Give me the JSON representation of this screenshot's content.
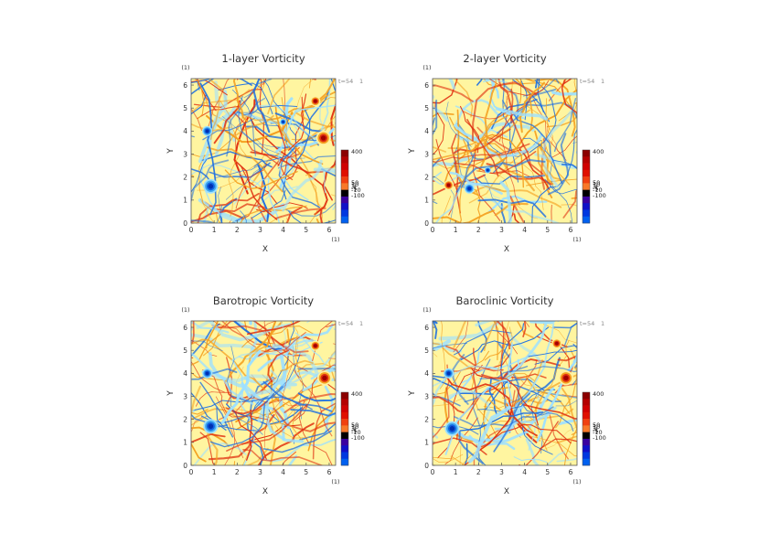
{
  "chart_data": [
    {
      "type": "heatmap",
      "title": "1-layer Vorticity",
      "xlabel": "X",
      "ylabel": "Y",
      "unit_x": "(1)",
      "unit_y": "(1)",
      "xlim": [
        0,
        6.28
      ],
      "ylim": [
        0,
        6.28
      ],
      "x_ticks": [
        "0",
        "1",
        "2",
        "3",
        "4",
        "5",
        "6"
      ],
      "y_ticks": [
        "0",
        "1",
        "2",
        "3",
        "4",
        "5",
        "6"
      ],
      "time_label": "t=54",
      "time_unit": "1",
      "colorbar": {
        "labels": [
          "400",
          "50",
          "10",
          "1",
          "-1",
          "-5",
          "-10",
          "-100"
        ],
        "colors": [
          "#8b0000",
          "#b40000",
          "#d00000",
          "#e01000",
          "#f04010",
          "#f87828",
          "#000000",
          "#3a00a0",
          "#1010c8",
          "#0038e0",
          "#0060f0"
        ]
      },
      "dominant_colors": [
        "#fff5a0",
        "#9ee0ff",
        "#f4a020",
        "#2070e0",
        "#e03010"
      ],
      "vortices": [
        {
          "x": 0.85,
          "y": 1.6,
          "sign": "negative",
          "strength": "strong"
        },
        {
          "x": 0.7,
          "y": 4.0,
          "sign": "negative",
          "strength": "medium"
        },
        {
          "x": 5.75,
          "y": 3.7,
          "sign": "positive",
          "strength": "strong"
        },
        {
          "x": 5.4,
          "y": 5.3,
          "sign": "positive",
          "strength": "medium"
        },
        {
          "x": 4.0,
          "y": 4.4,
          "sign": "negative",
          "strength": "weak"
        }
      ]
    },
    {
      "type": "heatmap",
      "title": "2-layer Vorticity",
      "xlabel": "X",
      "ylabel": "Y",
      "unit_x": "(1)",
      "unit_y": "(1)",
      "xlim": [
        0,
        6.28
      ],
      "ylim": [
        0,
        6.28
      ],
      "x_ticks": [
        "0",
        "1",
        "2",
        "3",
        "4",
        "5",
        "6"
      ],
      "y_ticks": [
        "0",
        "1",
        "2",
        "3",
        "4",
        "5",
        "6"
      ],
      "time_label": "t=54",
      "time_unit": "1",
      "colorbar": {
        "labels": [
          "400",
          "50",
          "10",
          "1",
          "-1",
          "-5",
          "-10",
          "-100"
        ],
        "colors": [
          "#8b0000",
          "#b40000",
          "#d00000",
          "#e01000",
          "#f04010",
          "#f87828",
          "#000000",
          "#3a00a0",
          "#1010c8",
          "#0038e0",
          "#0060f0"
        ]
      },
      "dominant_colors": [
        "#fff5a0",
        "#9ee0ff",
        "#f4a020",
        "#2070e0",
        "#e03010"
      ],
      "vortices": [
        {
          "x": 0.7,
          "y": 1.65,
          "sign": "positive",
          "strength": "medium"
        },
        {
          "x": 1.6,
          "y": 1.5,
          "sign": "negative",
          "strength": "medium"
        },
        {
          "x": 2.4,
          "y": 2.3,
          "sign": "negative",
          "strength": "weak"
        }
      ]
    },
    {
      "type": "heatmap",
      "title": "Barotropic Vorticity",
      "xlabel": "X",
      "ylabel": "Y",
      "unit_x": "(1)",
      "unit_y": "(1)",
      "xlim": [
        0,
        6.28
      ],
      "ylim": [
        0,
        6.28
      ],
      "x_ticks": [
        "0",
        "1",
        "2",
        "3",
        "4",
        "5",
        "6"
      ],
      "y_ticks": [
        "0",
        "1",
        "2",
        "3",
        "4",
        "5",
        "6"
      ],
      "time_label": "t=54",
      "time_unit": "1",
      "colorbar": {
        "labels": [
          "400",
          "50",
          "10",
          "1",
          "-1",
          "-5",
          "-10",
          "-100"
        ],
        "colors": [
          "#8b0000",
          "#b40000",
          "#d00000",
          "#e01000",
          "#f04010",
          "#f87828",
          "#000000",
          "#3a00a0",
          "#1010c8",
          "#0038e0",
          "#0060f0"
        ]
      },
      "dominant_colors": [
        "#fff5a0",
        "#9ee0ff",
        "#f4a020",
        "#2070e0",
        "#e03010"
      ],
      "vortices": [
        {
          "x": 0.85,
          "y": 1.7,
          "sign": "negative",
          "strength": "strong"
        },
        {
          "x": 0.7,
          "y": 4.0,
          "sign": "negative",
          "strength": "medium"
        },
        {
          "x": 5.8,
          "y": 3.8,
          "sign": "positive",
          "strength": "strong"
        },
        {
          "x": 5.4,
          "y": 5.2,
          "sign": "positive",
          "strength": "medium"
        }
      ]
    },
    {
      "type": "heatmap",
      "title": "Baroclinic Vorticity",
      "xlabel": "X",
      "ylabel": "Y",
      "unit_x": "(1)",
      "unit_y": "(1)",
      "xlim": [
        0,
        6.28
      ],
      "ylim": [
        0,
        6.28
      ],
      "x_ticks": [
        "0",
        "1",
        "2",
        "3",
        "4",
        "5",
        "6"
      ],
      "y_ticks": [
        "0",
        "1",
        "2",
        "3",
        "4",
        "5",
        "6"
      ],
      "time_label": "t=54",
      "time_unit": "1",
      "colorbar": {
        "labels": [
          "400",
          "50",
          "10",
          "1",
          "-1",
          "-5",
          "-10",
          "-100"
        ],
        "colors": [
          "#8b0000",
          "#b40000",
          "#d00000",
          "#e01000",
          "#f04010",
          "#f87828",
          "#000000",
          "#3a00a0",
          "#1010c8",
          "#0038e0",
          "#0060f0"
        ]
      },
      "dominant_colors": [
        "#fff5a0",
        "#9ee0ff",
        "#f4a020",
        "#2070e0",
        "#e03010"
      ],
      "vortices": [
        {
          "x": 0.85,
          "y": 1.6,
          "sign": "negative",
          "strength": "strong"
        },
        {
          "x": 0.7,
          "y": 4.0,
          "sign": "negative",
          "strength": "medium"
        },
        {
          "x": 5.8,
          "y": 3.8,
          "sign": "positive",
          "strength": "strong"
        },
        {
          "x": 5.4,
          "y": 5.3,
          "sign": "positive",
          "strength": "medium"
        }
      ]
    }
  ]
}
